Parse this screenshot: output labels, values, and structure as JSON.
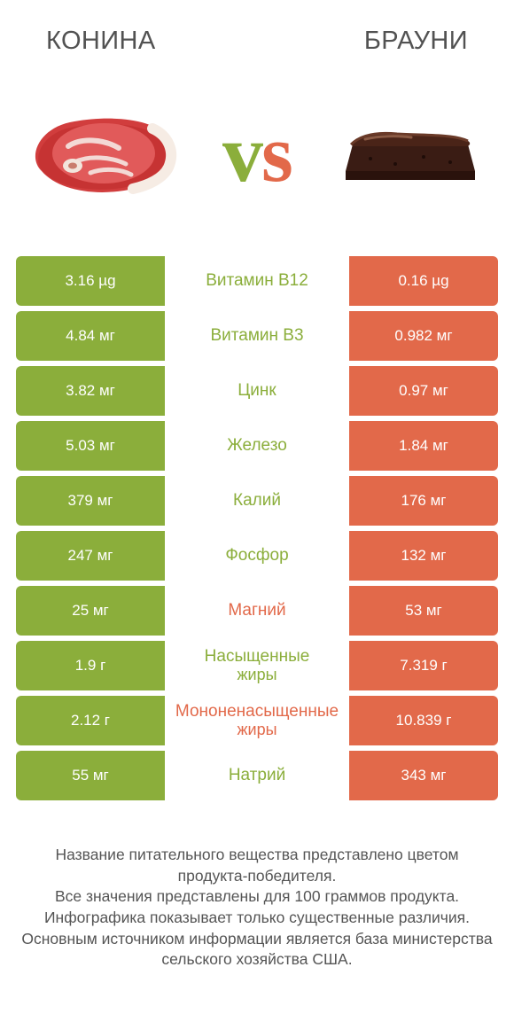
{
  "colors": {
    "green": "#8bae3b",
    "orange": "#e2694a",
    "midText": "#9a9a9a",
    "title": "#525252",
    "note": "#555555",
    "vsGreen": "#8bae3b",
    "vsOrange": "#e2694a",
    "bg": "#ffffff"
  },
  "header": {
    "leftTitle": "КОНИНА",
    "rightTitle": "БРАУНИ",
    "vs": "vs"
  },
  "rows": [
    {
      "left": "3.16 µg",
      "mid": "Витамин B12",
      "right": "0.16 µg",
      "midColor": "green"
    },
    {
      "left": "4.84 мг",
      "mid": "Витамин B3",
      "right": "0.982 мг",
      "midColor": "green"
    },
    {
      "left": "3.82 мг",
      "mid": "Цинк",
      "right": "0.97 мг",
      "midColor": "green"
    },
    {
      "left": "5.03 мг",
      "mid": "Железо",
      "right": "1.84 мг",
      "midColor": "green"
    },
    {
      "left": "379 мг",
      "mid": "Калий",
      "right": "176 мг",
      "midColor": "green"
    },
    {
      "left": "247 мг",
      "mid": "Фосфор",
      "right": "132 мг",
      "midColor": "green"
    },
    {
      "left": "25 мг",
      "mid": "Магний",
      "right": "53 мг",
      "midColor": "orange"
    },
    {
      "left": "1.9 г",
      "mid": "Насыщенные жиры",
      "right": "7.319 г",
      "midColor": "green",
      "twoLine": true
    },
    {
      "left": "2.12 г",
      "mid": "Мононенасыщенные жиры",
      "right": "10.839 г",
      "midColor": "orange",
      "twoLine": true
    },
    {
      "left": "55 мг",
      "mid": "Натрий",
      "right": "343 мг",
      "midColor": "green"
    }
  ],
  "note": {
    "l1": "Название питательного вещества представлено цветом продукта-победителя.",
    "l2": "Все значения представлены для 100 граммов продукта.",
    "l3": "Инфографика показывает только существенные различия.",
    "l4": "Основным источником информации является база министерства сельского хозяйства США."
  }
}
